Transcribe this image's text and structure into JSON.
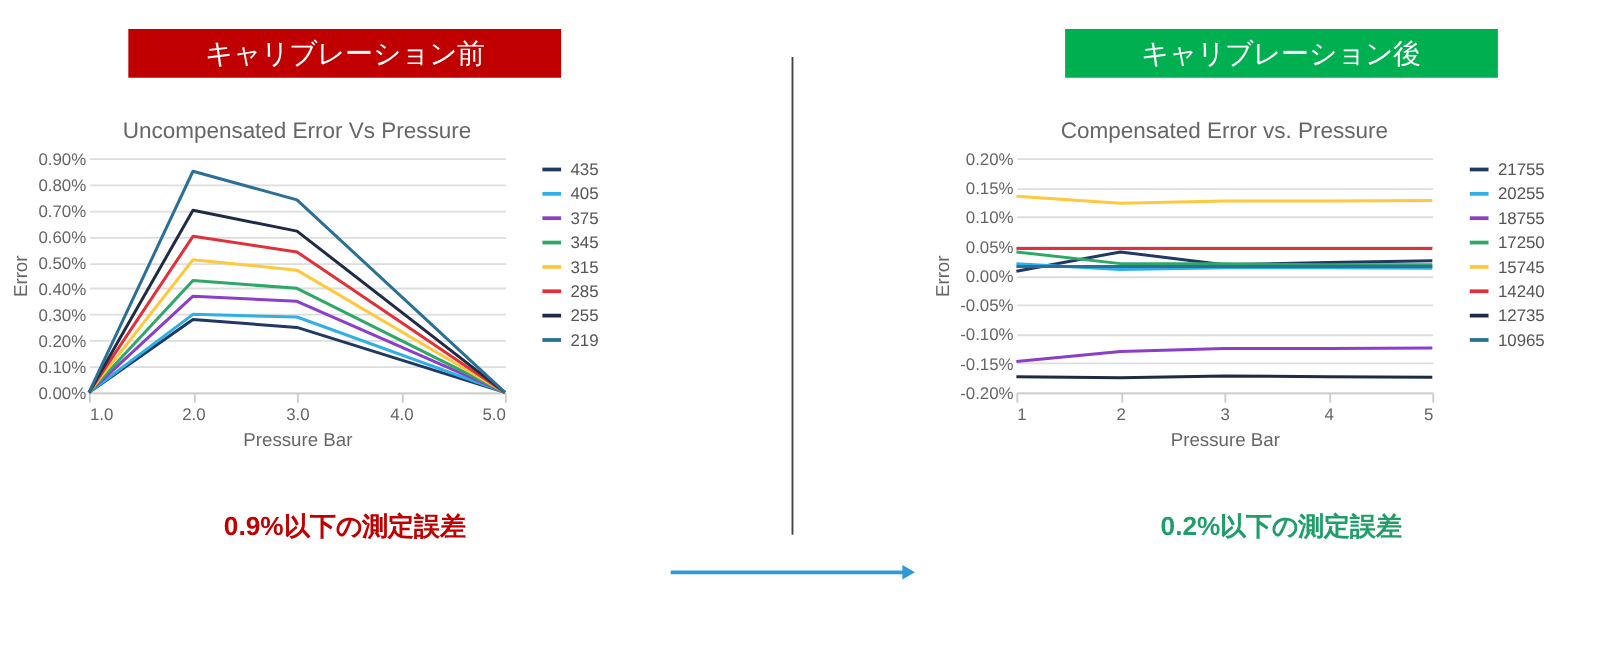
{
  "chart_data": [
    {
      "type": "line",
      "title": "キャリブレーション前",
      "subtitle": "Uncompensated Error Vs Pressure",
      "xlabel": "Pressure Bar",
      "ylabel": "Error",
      "annotations": [
        "0.9%以下の測定誤差"
      ],
      "x": [
        1,
        2,
        3,
        5
      ],
      "xlim": [
        1,
        5
      ],
      "xticks": [
        {
          "value": 1,
          "label": "1.0"
        },
        {
          "value": 2,
          "label": "2.0"
        },
        {
          "value": 3,
          "label": "3.0"
        },
        {
          "value": 4,
          "label": "4.0"
        },
        {
          "value": 5,
          "label": "5.0"
        }
      ],
      "ylim": [
        0,
        0.9
      ],
      "yticks": [
        {
          "value": 0,
          "label": "0.00%"
        },
        {
          "value": 0.1,
          "label": "0.10%"
        },
        {
          "value": 0.2,
          "label": "0.20%"
        },
        {
          "value": 0.3,
          "label": "0.30%"
        },
        {
          "value": 0.4,
          "label": "0.40%"
        },
        {
          "value": 0.5,
          "label": "0.50%"
        },
        {
          "value": 0.6,
          "label": "0.60%"
        },
        {
          "value": 0.7,
          "label": "0.70%"
        },
        {
          "value": 0.8,
          "label": "0.80%"
        },
        {
          "value": 0.9,
          "label": "0.90%"
        }
      ],
      "grid": "y",
      "legend": "right",
      "marker": "none",
      "line_style": "solid",
      "series": [
        {
          "name": "435",
          "color": "#1f3864",
          "values": [
            0,
            0.28,
            0.25,
            0
          ]
        },
        {
          "name": "405",
          "color": "#2eb0e6",
          "values": [
            0,
            0.3,
            0.29,
            0
          ]
        },
        {
          "name": "375",
          "color": "#8a3ec9",
          "values": [
            0,
            0.37,
            0.35,
            0
          ]
        },
        {
          "name": "345",
          "color": "#2ea868",
          "values": [
            0,
            0.43,
            0.4,
            0
          ]
        },
        {
          "name": "315",
          "color": "#ffc83d",
          "values": [
            0,
            0.51,
            0.47,
            0
          ]
        },
        {
          "name": "285",
          "color": "#e0303a",
          "values": [
            0,
            0.6,
            0.54,
            0
          ]
        },
        {
          "name": "255",
          "color": "#1f2a44",
          "values": [
            0,
            0.7,
            0.62,
            0
          ]
        },
        {
          "name": "219",
          "color": "#2a6f96",
          "values": [
            0,
            0.85,
            0.74,
            0
          ]
        }
      ]
    },
    {
      "type": "line",
      "title": "キャリブレーション後",
      "subtitle": "Compensated Error vs. Pressure",
      "xlabel": "Pressure Bar",
      "ylabel": "Error",
      "annotations": [
        "0.2%以下の測定誤差"
      ],
      "x": [
        1,
        2,
        3,
        4,
        5
      ],
      "xlim": [
        1,
        5
      ],
      "xticks": [
        1,
        2,
        3,
        4,
        5
      ],
      "ylim": [
        -0.2,
        0.2
      ],
      "yticks": [
        {
          "value": -0.2,
          "label": "-0.20%"
        },
        {
          "value": -0.15,
          "label": "-0.15%"
        },
        {
          "value": -0.1,
          "label": "-0.10%"
        },
        {
          "value": -0.05,
          "label": "-0.05%"
        },
        {
          "value": 0,
          "label": "0.00%"
        },
        {
          "value": 0.05,
          "label": "0.05%"
        },
        {
          "value": 0.1,
          "label": "0.10%"
        },
        {
          "value": 0.15,
          "label": "0.15%"
        },
        {
          "value": 0.2,
          "label": "0.20%"
        }
      ],
      "grid": "y",
      "legend": "right",
      "marker": "none",
      "line_style": "solid",
      "series": [
        {
          "name": "21755",
          "color": "#1f3864",
          "values": [
            0.007,
            0.04,
            0.018,
            0.022,
            0.025
          ]
        },
        {
          "name": "20255",
          "color": "#2eb0e6",
          "values": [
            0.02,
            0.01,
            0.013,
            0.013,
            0.012
          ]
        },
        {
          "name": "18755",
          "color": "#8a3ec9",
          "values": [
            -0.147,
            -0.13,
            -0.125,
            -0.125,
            -0.124
          ]
        },
        {
          "name": "17250",
          "color": "#2ea868",
          "values": [
            0.04,
            0.02,
            0.02,
            0.018,
            0.018
          ]
        },
        {
          "name": "15745",
          "color": "#ffc83d",
          "values": [
            0.135,
            0.123,
            0.127,
            0.127,
            0.128
          ]
        },
        {
          "name": "14240",
          "color": "#e0303a",
          "values": [
            0.046,
            0.046,
            0.046,
            0.046,
            0.046
          ]
        },
        {
          "name": "12735",
          "color": "#1f2a44",
          "values": [
            -0.173,
            -0.175,
            -0.172,
            -0.173,
            -0.174
          ]
        },
        {
          "name": "10965",
          "color": "#2a6f96",
          "values": [
            0.015,
            0.015,
            0.015,
            0.015,
            0.015
          ]
        }
      ]
    }
  ]
}
